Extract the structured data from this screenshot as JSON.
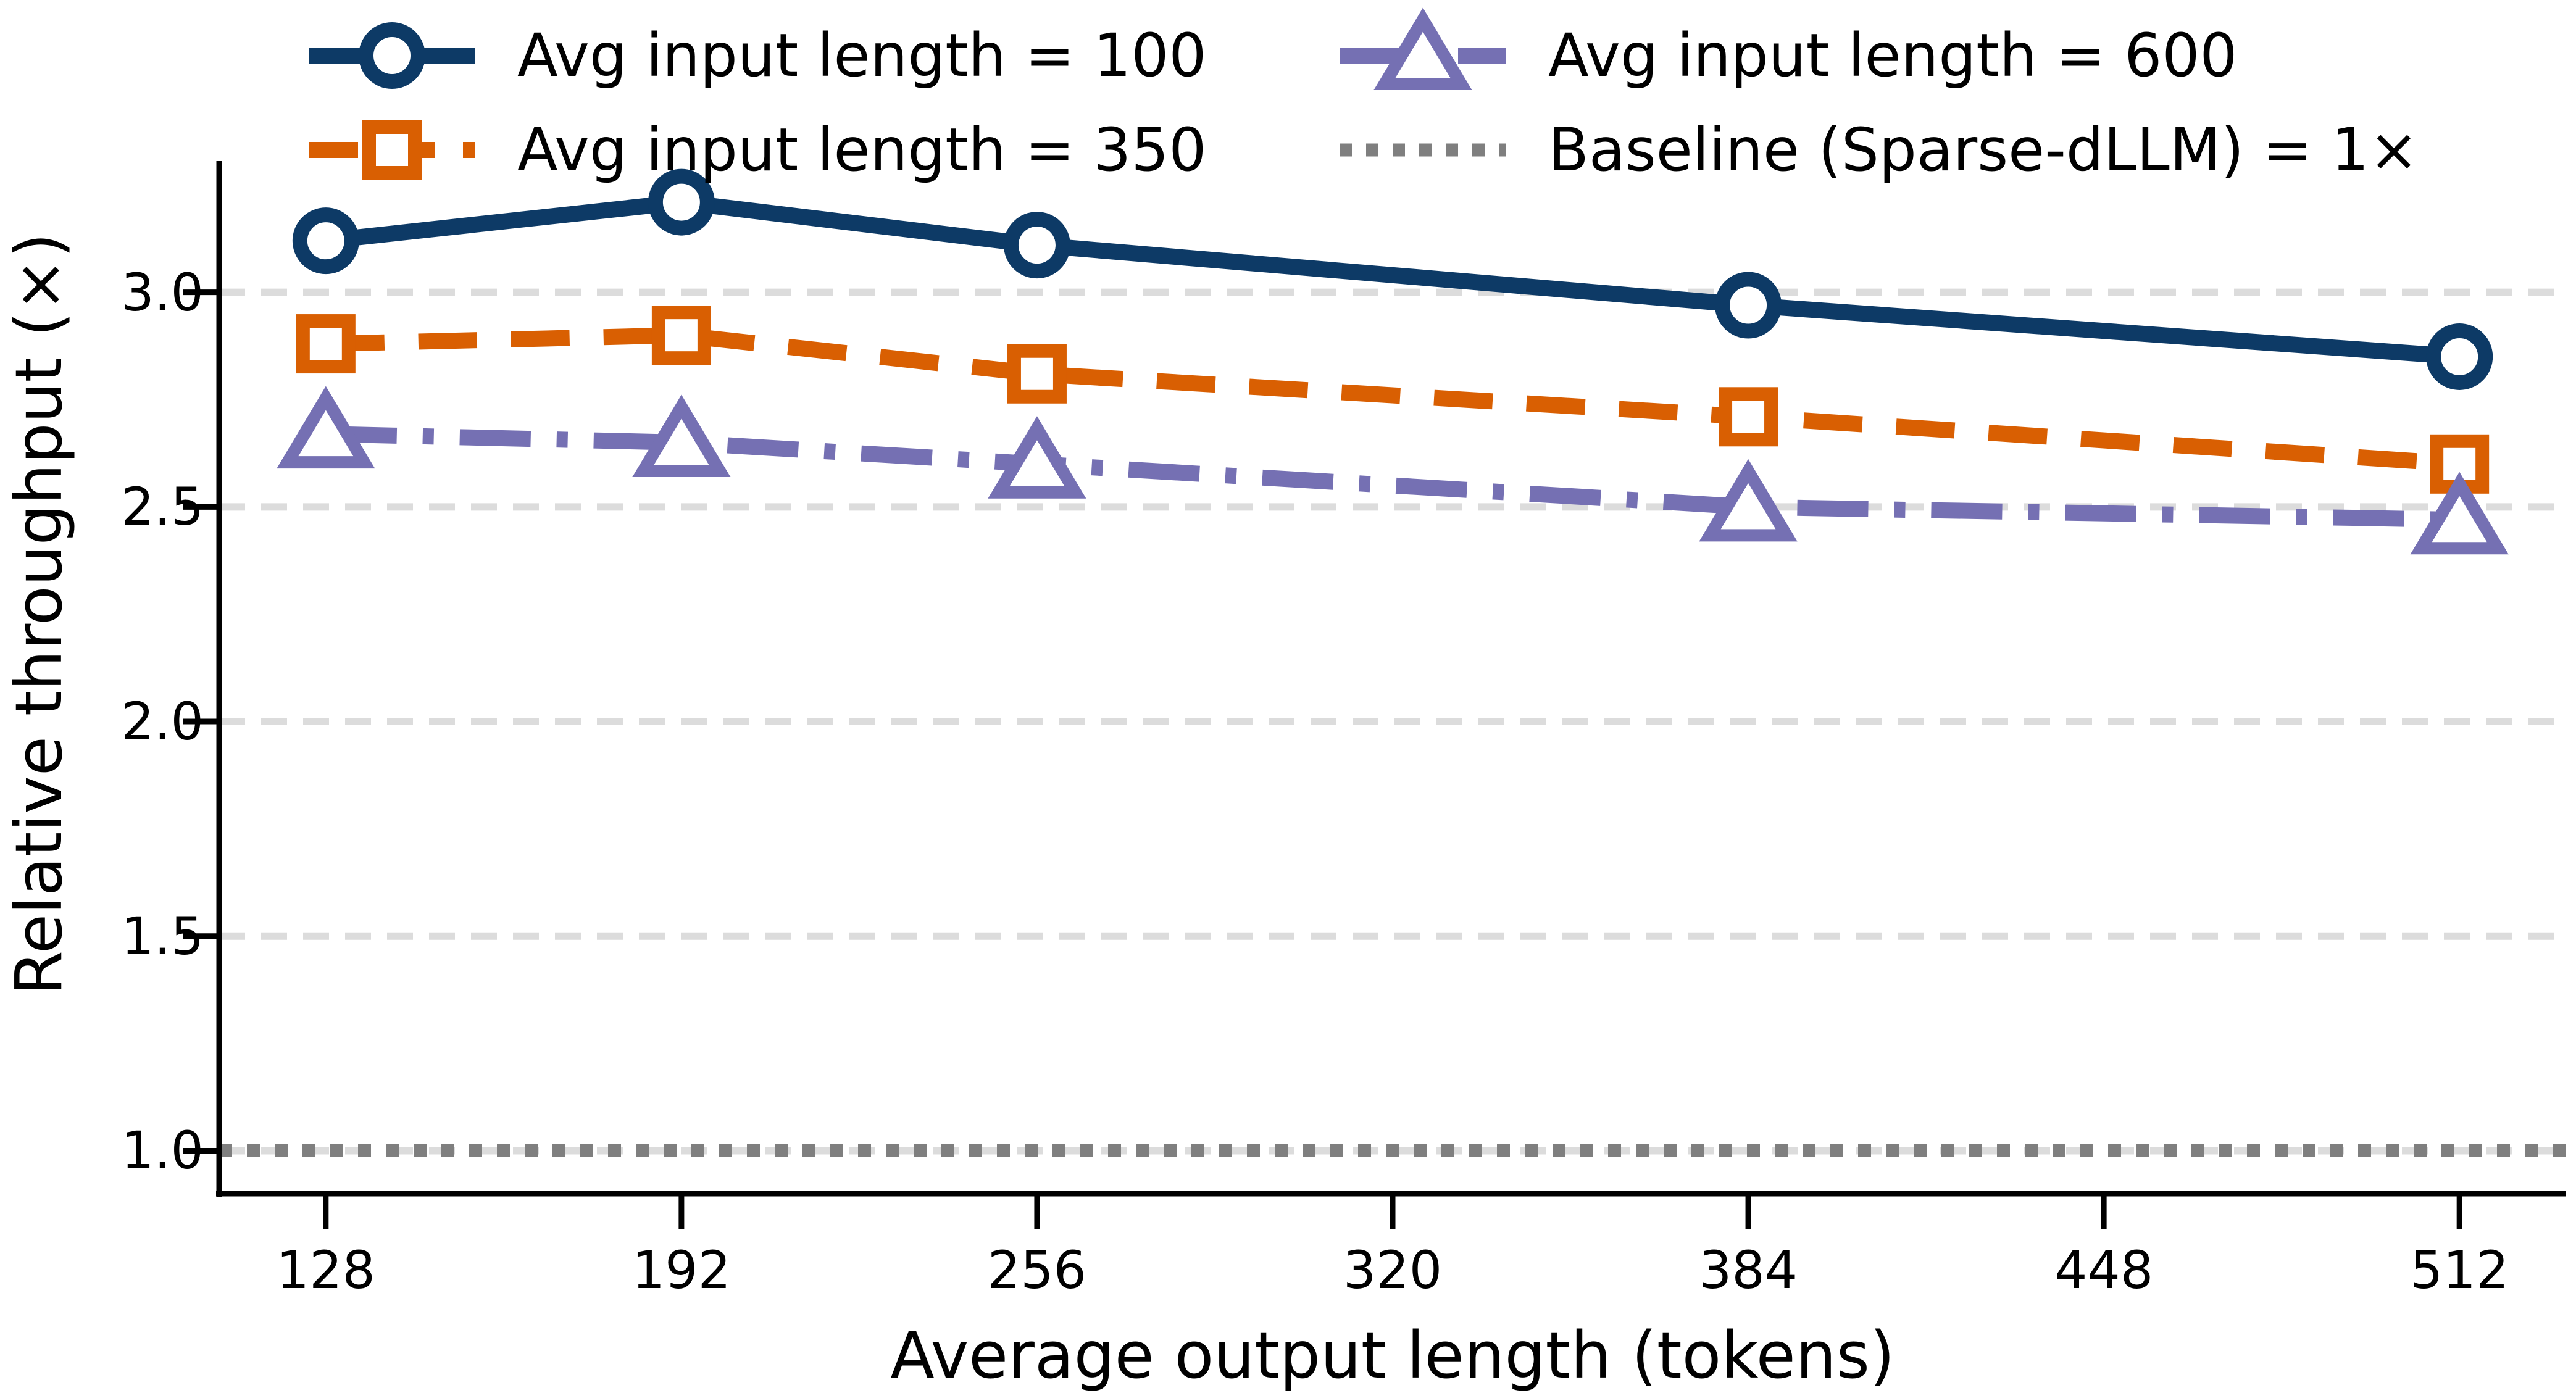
{
  "figure": {
    "background_color": "#ffffff",
    "text_color": "#000000"
  },
  "chart_data": {
    "type": "line",
    "x": [
      128,
      192,
      256,
      384,
      512
    ],
    "series": [
      {
        "name": "Avg input length = 100",
        "values": [
          3.12,
          3.21,
          3.11,
          2.97,
          2.85
        ],
        "color": "#0d3a66",
        "linestyle": "solid",
        "marker": "circle"
      },
      {
        "name": "Avg input length = 350",
        "values": [
          2.88,
          2.9,
          2.81,
          2.71,
          2.6
        ],
        "color": "#d95f02",
        "linestyle": "dashed",
        "marker": "square"
      },
      {
        "name": "Avg input length = 600",
        "values": [
          2.67,
          2.65,
          2.6,
          2.5,
          2.47
        ],
        "color": "#7570b3",
        "linestyle": "dashdot",
        "marker": "triangle"
      }
    ],
    "baseline": {
      "name": "Baseline (Sparse-dLLM) = 1×",
      "value": 1.0,
      "color": "#7f7f7f",
      "linestyle": "dotted"
    },
    "xlabel": "Average output length (tokens)",
    "ylabel": "Relative throughput (×)",
    "xticks": [
      128,
      192,
      256,
      320,
      384,
      448,
      512
    ],
    "ytick_labels": [
      "1.0",
      "1.5",
      "2.0",
      "2.5",
      "3.0"
    ],
    "yticks": [
      1.0,
      1.5,
      2.0,
      2.5,
      3.0
    ],
    "xlim": [
      108.8,
      531.2
    ],
    "ylim": [
      0.9,
      3.3
    ],
    "grid": "horizontal, dashed, light gray",
    "gridline_color": "#dcdcdc",
    "axis_color": "#000000",
    "legend_position": "top, two columns, frameless"
  }
}
